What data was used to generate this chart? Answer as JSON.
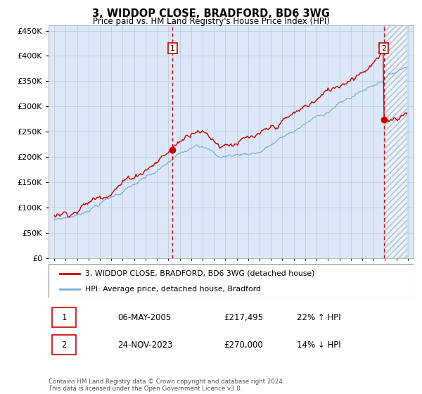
{
  "title": "3, WIDDOP CLOSE, BRADFORD, BD6 3WG",
  "subtitle": "Price paid vs. HM Land Registry's House Price Index (HPI)",
  "legend_line1": "3, WIDDOP CLOSE, BRADFORD, BD6 3WG (detached house)",
  "legend_line2": "HPI: Average price, detached house, Bradford",
  "transaction1_date": "06-MAY-2005",
  "transaction1_price": "£217,495",
  "transaction1_hpi": "22% ↑ HPI",
  "transaction1_year": 2005.37,
  "transaction1_value": 217495,
  "transaction2_date": "24-NOV-2023",
  "transaction2_price": "£270,000",
  "transaction2_hpi": "14% ↓ HPI",
  "transaction2_year": 2023.9,
  "transaction2_value": 270000,
  "footer": "Contains HM Land Registry data © Crown copyright and database right 2024.\nThis data is licensed under the Open Government Licence v3.0.",
  "red_color": "#cc0000",
  "blue_color": "#7aacdc",
  "bg_color": "#dce8f8",
  "hatch_color": "#b0bcd0",
  "grid_color": "#b8c8d8",
  "ylim_max": 460000,
  "xlim_start": 1994.5,
  "xlim_end": 2026.5,
  "yticks": [
    0,
    50000,
    100000,
    150000,
    200000,
    250000,
    300000,
    350000,
    400000,
    450000
  ]
}
